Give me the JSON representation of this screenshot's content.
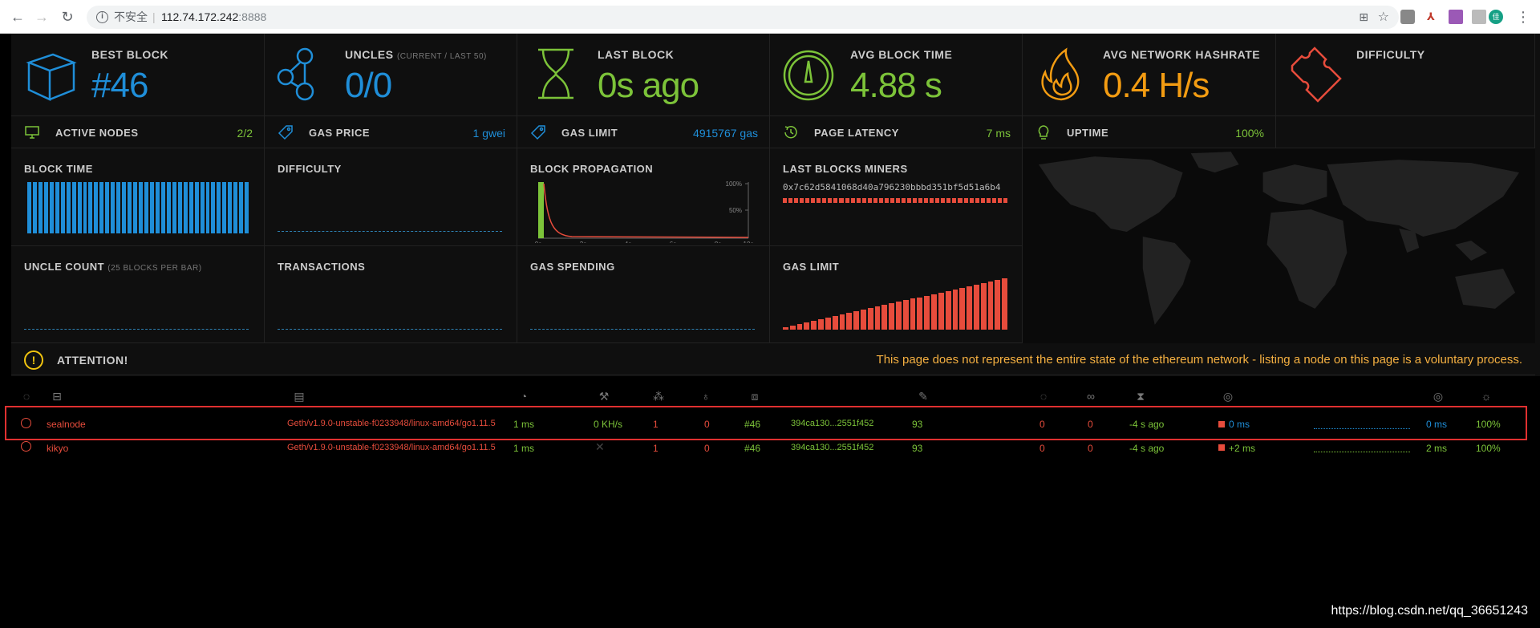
{
  "browser": {
    "insecure_label": "不安全",
    "separator": "|",
    "host": "112.74.172.242",
    "port": ":8888"
  },
  "stats": {
    "best_block": {
      "title": "BEST BLOCK",
      "value": "#46",
      "color": "#1f8ed8"
    },
    "uncles": {
      "title": "UNCLES",
      "subtitle": "(CURRENT / LAST 50)",
      "value": "0/0",
      "color": "#1f8ed8"
    },
    "last_block": {
      "title": "LAST BLOCK",
      "value": "0s ago",
      "color": "#7cc339"
    },
    "avg_block_time": {
      "title": "AVG BLOCK TIME",
      "value": "4.88 s",
      "color": "#7cc339"
    },
    "avg_hashrate": {
      "title": "AVG NETWORK HASHRATE",
      "value": "0.4 H/s",
      "color": "#f39c12"
    },
    "difficulty": {
      "title": "DIFFICULTY",
      "value": "",
      "color": "#e74c3c"
    }
  },
  "small_stats": {
    "active_nodes": {
      "title": "ACTIVE NODES",
      "value": "2/2"
    },
    "gas_price": {
      "title": "GAS PRICE",
      "value": "1 gwei"
    },
    "gas_limit": {
      "title": "GAS LIMIT",
      "value": "4915767 gas"
    },
    "page_latency": {
      "title": "PAGE LATENCY",
      "value": "7 ms"
    },
    "uptime": {
      "title": "UPTIME",
      "value": "100%"
    }
  },
  "charts": {
    "block_time": {
      "title": "BLOCK TIME"
    },
    "difficulty": {
      "title": "DIFFICULTY"
    },
    "block_propagation": {
      "title": "BLOCK PROPAGATION",
      "y_ticks": [
        "100%",
        "50%"
      ],
      "x_ticks": [
        "0s",
        "2s",
        "4s",
        "6s",
        "8s",
        "10s"
      ]
    },
    "last_blocks_miners": {
      "title": "LAST BLOCKS MINERS",
      "miner": "0x7c62d5841068d40a796230bbbd351bf5d51a6b4"
    },
    "uncle_count": {
      "title": "UNCLE COUNT",
      "subtitle": "(25 BLOCKS PER BAR)"
    },
    "transactions": {
      "title": "TRANSACTIONS"
    },
    "gas_spending": {
      "title": "GAS SPENDING"
    },
    "gas_limit": {
      "title": "GAS LIMIT"
    }
  },
  "chart_data": [
    {
      "type": "bar",
      "title": "BLOCK TIME",
      "values": [
        5,
        5,
        5,
        5,
        5,
        5,
        5,
        5,
        5,
        5,
        5,
        5,
        5,
        5,
        5,
        5,
        5,
        5,
        5,
        5,
        5,
        5,
        5,
        5,
        5,
        5,
        5,
        5,
        5,
        5,
        5,
        5,
        5,
        5,
        5,
        5,
        5,
        5,
        5,
        5
      ],
      "color": "#1f8ed8"
    },
    {
      "type": "bar",
      "title": "GAS LIMIT",
      "values": [
        5,
        8,
        11,
        14,
        17,
        20,
        23,
        26,
        29,
        32,
        35,
        38,
        41,
        44,
        47,
        50,
        53,
        56,
        59,
        62,
        65,
        68,
        71,
        74,
        77,
        80,
        83,
        86,
        89,
        92,
        95,
        98
      ],
      "color": "#e74c3c"
    }
  ],
  "attention": {
    "title": "ATTENTION!",
    "message": "This page does not represent the entire state of the ethereum network - listing a node on this page is a voluntary process."
  },
  "nodes": [
    {
      "name": "sealnode",
      "client": "Geth/v1.9.0-unstable-f0233948/linux-amd64/go1.11.5",
      "latency": "1 ms",
      "mining": "0 KH/s",
      "peers": "1",
      "pending": "0",
      "block": "#46",
      "hash": "394ca130...2551f452",
      "difficulty": "93",
      "tx": "0",
      "uncles": "0",
      "last_block": "-4 s ago",
      "propagation": "0 ms",
      "avg_prop": "0 ms",
      "uptime": "100%"
    },
    {
      "name": "kikyo",
      "client": "Geth/v1.9.0-unstable-f0233948/linux-amd64/go1.11.5",
      "latency": "1 ms",
      "mining": "",
      "peers": "1",
      "pending": "0",
      "block": "#46",
      "hash": "394ca130...2551f452",
      "difficulty": "93",
      "tx": "0",
      "uncles": "0",
      "last_block": "-4 s ago",
      "propagation": "+2 ms",
      "avg_prop": "2 ms",
      "uptime": "100%"
    }
  ],
  "watermark": "https://blog.csdn.net/qq_36651243"
}
